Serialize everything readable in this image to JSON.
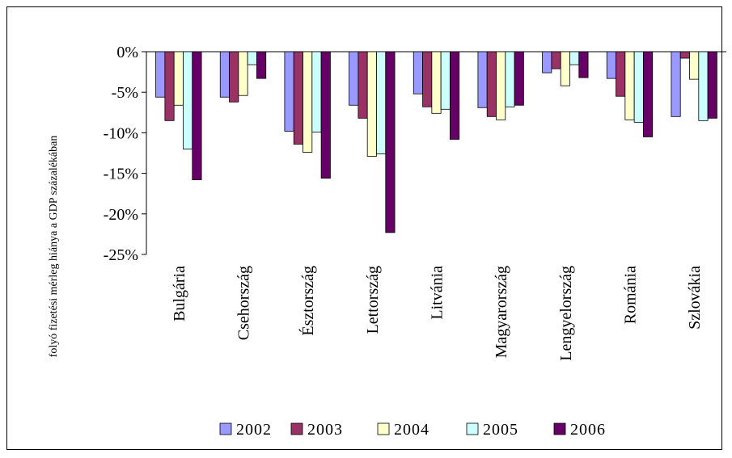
{
  "chart_data": {
    "type": "bar",
    "ylabel": "folyó fizetési mérleg hiánya a GDP százalékában",
    "ylim": [
      -25,
      0
    ],
    "yticks": [
      0,
      -5,
      -10,
      -15,
      -20,
      -25
    ],
    "ytick_labels": [
      "0%",
      "-5%",
      "-10%",
      "-15%",
      "-20%",
      "-25%"
    ],
    "categories": [
      "Bulgária",
      "Csehország",
      "Észtország",
      "Lettország",
      "Litvánia",
      "Magyarország",
      "Lengyelország",
      "Románia",
      "Szlovákia"
    ],
    "series": [
      {
        "name": "2002",
        "color": "#9999FF",
        "values": [
          -5.6,
          -5.6,
          -9.8,
          -6.6,
          -5.2,
          -6.9,
          -2.6,
          -3.3,
          -8.0
        ]
      },
      {
        "name": "2003",
        "color": "#993366",
        "values": [
          -8.5,
          -6.2,
          -11.4,
          -8.2,
          -6.8,
          -8.0,
          -2.1,
          -5.5,
          -0.8
        ]
      },
      {
        "name": "2004",
        "color": "#FFFFCC",
        "values": [
          -6.6,
          -5.4,
          -12.4,
          -12.9,
          -7.6,
          -8.4,
          -4.2,
          -8.4,
          -3.4
        ]
      },
      {
        "name": "2005",
        "color": "#CCFFFF",
        "values": [
          -12.0,
          -1.6,
          -9.9,
          -12.6,
          -7.1,
          -6.8,
          -1.6,
          -8.7,
          -8.5
        ]
      },
      {
        "name": "2006",
        "color": "#660066",
        "values": [
          -15.8,
          -3.3,
          -15.6,
          -22.3,
          -10.8,
          -6.6,
          -3.2,
          -10.5,
          -8.2
        ]
      }
    ],
    "legend_position": "bottom",
    "grid": false
  }
}
